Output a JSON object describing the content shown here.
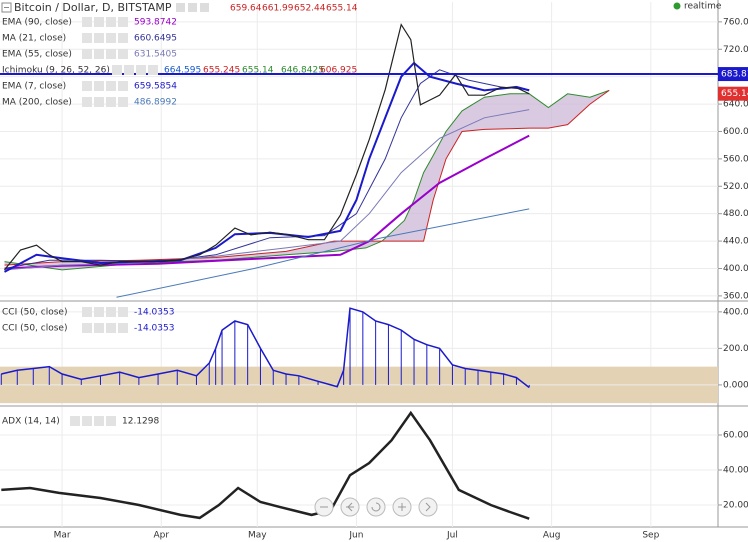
{
  "chart_data": [
    {
      "type": "line",
      "title": "Bitcoin / Dollar, D, BITSTAMP",
      "ohlc": [
        659.64,
        661.99,
        652.44,
        655.14
      ],
      "ohlc_color": "#cc2222",
      "status": "realtime",
      "xlim": [
        -19.4,
        205
      ],
      "ylim": [
        354,
        789
      ],
      "yticks": [
        {
          "value": 360,
          "label": "360.00"
        },
        {
          "value": 400,
          "label": "400.00"
        },
        {
          "value": 440,
          "label": "440.00"
        },
        {
          "value": 480,
          "label": "480.00"
        },
        {
          "value": 520,
          "label": "520.00"
        },
        {
          "value": 560,
          "label": "560.00"
        },
        {
          "value": 600,
          "label": "600.00"
        },
        {
          "value": 640,
          "label": "640.00"
        },
        {
          "value": 680,
          "label": "680.00"
        },
        {
          "value": 720,
          "label": "720.00"
        },
        {
          "value": 760,
          "label": "760.00"
        }
      ],
      "grid": true,
      "hline": 683.81,
      "hline_color": "#1a1acc",
      "last_price": 655.14,
      "last_price_color": "#e03030",
      "price": {
        "color": "#222222",
        "x": [
          -18,
          -13,
          -8,
          -4,
          0,
          6,
          12,
          18,
          24,
          31,
          37,
          43,
          48,
          54,
          59,
          65,
          71,
          77,
          82,
          87,
          92,
          96,
          101,
          106,
          109,
          112,
          115,
          118,
          123,
          127,
          132,
          137,
          142,
          146
        ],
        "values": [
          398,
          427,
          434,
          420,
          410,
          410,
          405,
          410,
          410,
          410,
          413,
          420,
          434,
          459,
          449,
          453,
          449,
          442,
          442,
          478,
          537,
          588,
          661,
          756,
          734,
          639,
          646,
          653,
          683,
          653,
          653,
          664,
          664,
          655
        ]
      },
      "series": [
        {
          "name": "EMA (90, close)",
          "reading": 593.8742,
          "color": "#9900cc",
          "width": 2,
          "x": [
            -18,
            0,
            30,
            60,
            87,
            96,
            106,
            118,
            132,
            146
          ],
          "values": [
            400,
            404,
            407,
            414,
            420,
            440,
            480,
            525,
            560,
            594
          ]
        },
        {
          "name": "MA (21, close)",
          "reading": 660.6495,
          "color": "#333399",
          "width": 1,
          "x": [
            -18,
            -4,
            12,
            31,
            48,
            65,
            82,
            92,
            101,
            106,
            112,
            118,
            127,
            137,
            146
          ],
          "values": [
            400,
            412,
            412,
            410,
            420,
            445,
            448,
            480,
            560,
            620,
            670,
            690,
            675,
            665,
            661
          ]
        },
        {
          "name": "EMA (55, close)",
          "reading": 631.5405,
          "color": "#7a7ab8",
          "width": 1,
          "x": [
            -18,
            0,
            24,
            48,
            70,
            87,
            96,
            106,
            118,
            132,
            146
          ],
          "values": [
            398,
            405,
            408,
            418,
            430,
            440,
            480,
            540,
            590,
            620,
            632
          ]
        },
        {
          "name": "Ichimoku (9, 26, 52, 26)",
          "readings": [
            664.595,
            655.245,
            655.14,
            646.8425,
            606.925
          ],
          "reading_colors": [
            "#1a5acc",
            "#cc2222",
            "#2e8b2e",
            "#2e8b2e",
            "#cc2222"
          ],
          "cloud_color": "#c9b3d6",
          "x": [
            -18,
            0,
            24,
            48,
            70,
            85,
            95,
            100,
            107,
            110,
            113,
            116,
            120,
            125,
            132,
            140,
            146,
            152,
            158,
            165,
            171
          ],
          "span_a": {
            "color": "#2e8b2e",
            "values": [
              410,
              398,
              408,
              412,
              420,
              425,
              430,
              440,
              470,
              500,
              540,
              565,
              600,
              630,
              650,
              655,
              655,
              635,
              655,
              650,
              660
            ]
          },
          "span_b": {
            "color": "#cc2222",
            "values": [
              405,
              410,
              412,
              416,
              425,
              440,
              440,
              440,
              440,
              440,
              440,
              500,
              560,
              600,
              603,
              604,
              605,
              605,
              610,
              640,
              660
            ]
          }
        },
        {
          "name": "EMA (7, close)",
          "reading": 659.5854,
          "color": "#1a1acc",
          "width": 2,
          "x": [
            -18,
            -8,
            0,
            12,
            24,
            37,
            48,
            54,
            65,
            77,
            87,
            92,
            96,
            101,
            106,
            110,
            115,
            123,
            132,
            142,
            146
          ],
          "values": [
            395,
            420,
            415,
            408,
            410,
            412,
            430,
            450,
            452,
            446,
            455,
            500,
            560,
            620,
            680,
            700,
            680,
            670,
            660,
            665,
            660
          ]
        },
        {
          "name": "MA (200, close)",
          "reading": 486.8992,
          "color": "#4a7ab8",
          "width": 1,
          "x": [
            17,
            60,
            100,
            146
          ],
          "values": [
            358,
            400,
            445,
            487
          ]
        }
      ]
    },
    {
      "type": "histogram-line",
      "xlim": [
        -19.4,
        205
      ],
      "ylim": [
        -110,
        454
      ],
      "yticks": [
        {
          "value": 0,
          "label": "0.0000"
        },
        {
          "value": 200,
          "label": "200.0000"
        },
        {
          "value": 400,
          "label": "400.0000"
        }
      ],
      "grid": true,
      "band": [
        -100,
        100
      ],
      "band_color": "#e3d2b4",
      "series": [
        {
          "name": "CCI (50, close)",
          "reading": -14.0353,
          "color": "#1a1acc"
        },
        {
          "name": "CCI (50, close)",
          "reading": -14.0353,
          "color": "#1a1acc"
        }
      ],
      "x": [
        -19,
        -14,
        -9,
        -4,
        0,
        6,
        12,
        18,
        24,
        30,
        36,
        42,
        46,
        48,
        50,
        54,
        58,
        62,
        66,
        70,
        74,
        80,
        84,
        86,
        88,
        90,
        94,
        98,
        102,
        106,
        110,
        114,
        118,
        122,
        126,
        130,
        134,
        138,
        142,
        146
      ],
      "values": [
        60,
        80,
        90,
        100,
        60,
        30,
        50,
        70,
        40,
        60,
        80,
        50,
        120,
        200,
        300,
        350,
        330,
        200,
        80,
        60,
        50,
        20,
        0,
        -10,
        80,
        420,
        400,
        350,
        330,
        300,
        250,
        220,
        200,
        110,
        90,
        80,
        70,
        60,
        40,
        -14.0353
      ]
    },
    {
      "type": "line",
      "xlim": [
        -19.4,
        205
      ],
      "ylim": [
        7.4,
        76
      ],
      "yticks": [
        {
          "value": 20,
          "label": "20.0000"
        },
        {
          "value": 40,
          "label": "40.0000"
        },
        {
          "value": 60,
          "label": "60.0000"
        }
      ],
      "xticks": [
        {
          "value": 0,
          "label": "Mar"
        },
        {
          "value": 31,
          "label": "Apr"
        },
        {
          "value": 61,
          "label": "May"
        },
        {
          "value": 92,
          "label": "Jun"
        },
        {
          "value": 122,
          "label": "Jul"
        },
        {
          "value": 153,
          "label": "Aug"
        },
        {
          "value": 184,
          "label": "Sep"
        }
      ],
      "grid": true,
      "series": [
        {
          "name": "ADX (14, 14)",
          "reading": 12.1298,
          "color": "#222222",
          "x": [
            -19,
            -10,
            -1,
            12,
            24,
            37,
            43,
            49,
            55,
            62,
            68,
            78,
            84,
            90,
            96,
            103,
            109,
            115,
            124,
            134,
            140,
            146
          ],
          "values": [
            28.6,
            29.7,
            26.9,
            24,
            20,
            14.3,
            12.6,
            20,
            29.7,
            21.7,
            18.9,
            14.3,
            17,
            37,
            44,
            57,
            72.6,
            57,
            28.6,
            20,
            16,
            12.1298
          ]
        }
      ]
    }
  ]
}
